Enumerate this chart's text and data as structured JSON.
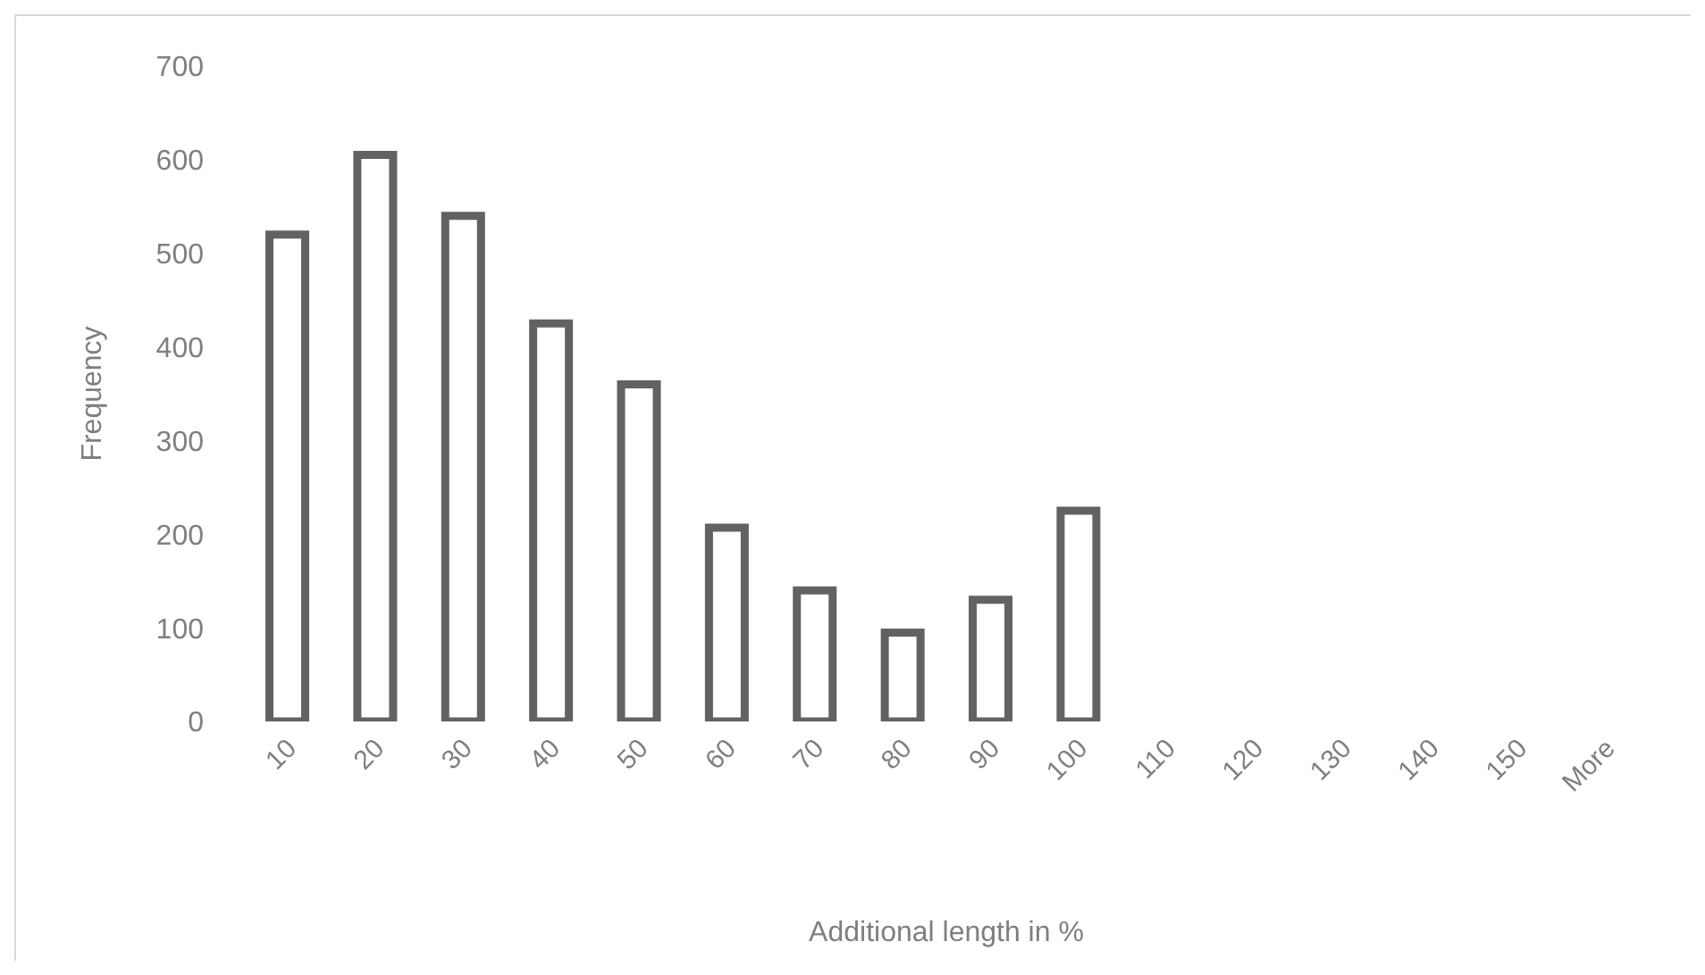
{
  "chart_data": {
    "type": "bar",
    "xlabel": "Additional length in %",
    "ylabel": "Frequency",
    "categories": [
      "10",
      "20",
      "30",
      "40",
      "50",
      "60",
      "70",
      "80",
      "90",
      "100",
      "110",
      "120",
      "130",
      "140",
      "150",
      "More"
    ],
    "values": [
      520,
      605,
      540,
      425,
      360,
      207,
      140,
      95,
      130,
      225,
      0,
      0,
      0,
      0,
      0,
      0
    ],
    "color": "#626262",
    "ylim": [
      0,
      700
    ],
    "yticks": [
      0,
      100,
      200,
      300,
      400,
      500,
      600,
      700
    ],
    "grid": false,
    "legend": false
  }
}
